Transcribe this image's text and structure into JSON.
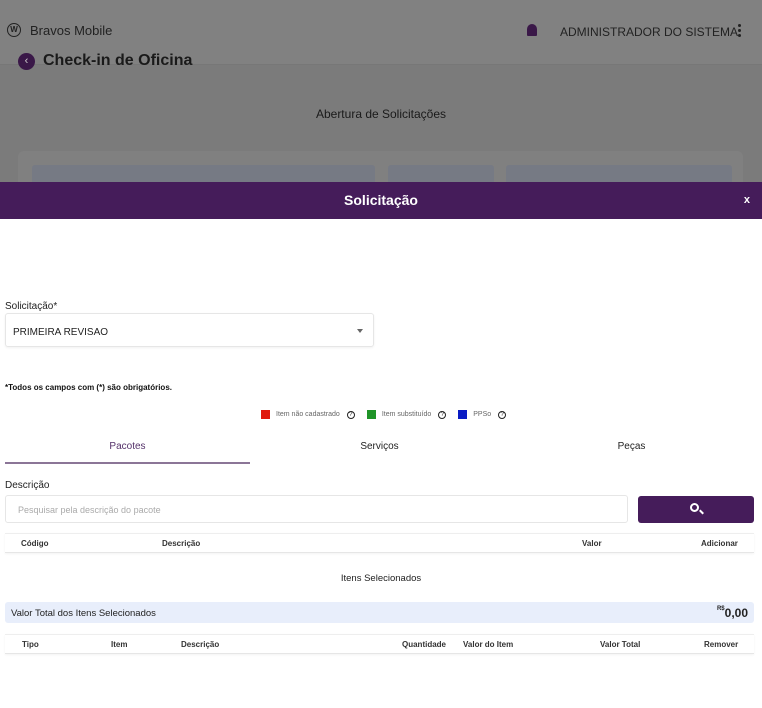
{
  "app": {
    "brand": "Bravos Mobile",
    "user": "ADMINISTRADOR DO SISTEMA.",
    "page_title": "Check-in de Oficina",
    "section_title": "Abertura de Solicitações"
  },
  "dialog": {
    "title": "Solicitação",
    "close": "x",
    "solicitacao_label": "Solicitação*",
    "solicitacao_value": "PRIMEIRA REVISAO",
    "required_note": "*Todos os campos com (*) são obrigatórios.",
    "legend": [
      {
        "label": "Item não cadastrado",
        "color": "#e0180c"
      },
      {
        "label": "Item substituído",
        "color": "#1f9428"
      },
      {
        "label": "PPSo",
        "color": "#0a1cc4"
      }
    ],
    "tabs": [
      "Pacotes",
      "Serviços",
      "Peças"
    ],
    "active_tab": "Pacotes",
    "descricao_label": "Descrição",
    "search_placeholder": "Pesquisar pela descrição do pacote",
    "results_columns": [
      "Código",
      "Descrição",
      "Valor",
      "Adicionar"
    ],
    "selected_title": "Itens Selecionados",
    "total_label": "Valor Total dos Itens Selecionados",
    "currency": "R$",
    "total_value": "0,00",
    "selected_columns": [
      "Tipo",
      "Item",
      "Descrição",
      "Quantidade",
      "Valor do Item",
      "Valor Total",
      "Remover"
    ]
  }
}
